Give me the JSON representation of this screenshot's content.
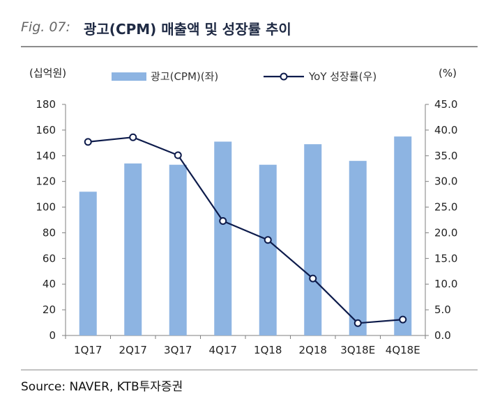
{
  "figure": {
    "number": "Fig. 07:",
    "title": "광고(CPM) 매출액 및 성장률 추이",
    "source": "Source: NAVER, KTB투자증권"
  },
  "chart_data": {
    "type": "bar+line",
    "categories": [
      "1Q17",
      "2Q17",
      "3Q17",
      "4Q17",
      "1Q18",
      "2Q18",
      "3Q18E",
      "4Q18E"
    ],
    "left_unit": "(십억원)",
    "right_unit": "(%)",
    "left_ylim": [
      0,
      180
    ],
    "right_ylim": [
      0,
      45
    ],
    "left_ticks": [
      "0",
      "20",
      "40",
      "60",
      "80",
      "100",
      "120",
      "140",
      "160",
      "180"
    ],
    "right_ticks": [
      "0.0",
      "5.0",
      "10.0",
      "15.0",
      "20.0",
      "25.0",
      "30.0",
      "35.0",
      "40.0",
      "45.0"
    ],
    "grid": false,
    "legend_position": "top",
    "series": [
      {
        "name": "광고(CPM)(좌)",
        "kind": "bar",
        "axis": "left",
        "color": "#8db4e2",
        "values": [
          112,
          134,
          133,
          151,
          133,
          149,
          136,
          155
        ]
      },
      {
        "name": "YoY 성장률(우)",
        "kind": "line",
        "axis": "right",
        "color": "#0d1b4b",
        "values": [
          37.7,
          38.6,
          35.1,
          22.3,
          18.6,
          11.1,
          2.4,
          3.1
        ]
      }
    ]
  }
}
